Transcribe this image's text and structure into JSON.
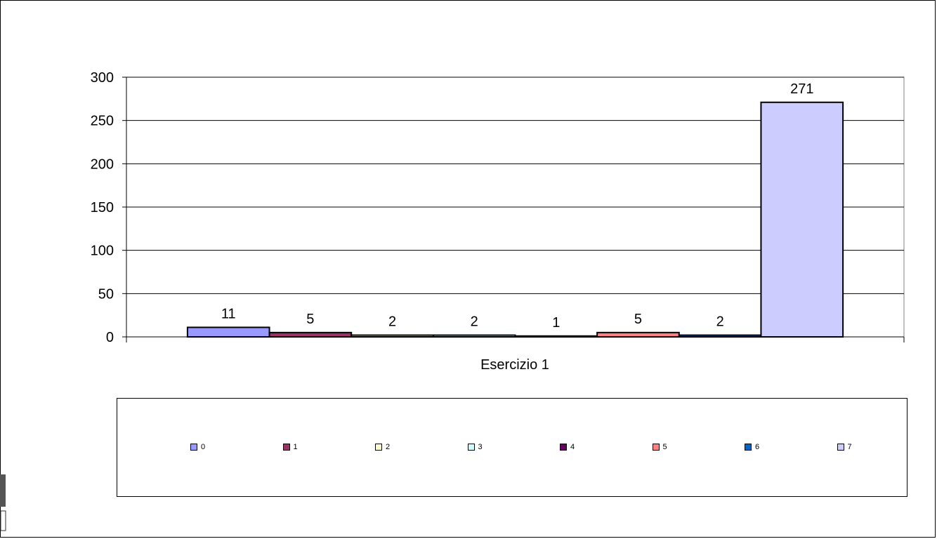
{
  "chart_data": {
    "type": "bar",
    "title": "",
    "xlabel": "Esercizio 1",
    "ylabel": "",
    "categories": [
      "Esercizio 1"
    ],
    "series": [
      {
        "name": "0",
        "values": [
          11
        ],
        "color": "#9999ff"
      },
      {
        "name": "1",
        "values": [
          5
        ],
        "color": "#993366"
      },
      {
        "name": "2",
        "values": [
          2
        ],
        "color": "#ffffcc"
      },
      {
        "name": "3",
        "values": [
          2
        ],
        "color": "#ccffff"
      },
      {
        "name": "4",
        "values": [
          1
        ],
        "color": "#660066"
      },
      {
        "name": "5",
        "values": [
          5
        ],
        "color": "#ff8080"
      },
      {
        "name": "6",
        "values": [
          2
        ],
        "color": "#0066cc"
      },
      {
        "name": "7",
        "values": [
          271
        ],
        "color": "#ccccff"
      }
    ],
    "ylim": [
      0,
      300
    ],
    "yticks": [
      "0",
      "50",
      "100",
      "150",
      "200",
      "250",
      "300"
    ],
    "data_labels": [
      "11",
      "5",
      "2",
      "2",
      "1",
      "5",
      "2",
      "271"
    ],
    "grid": true,
    "legend_position": "bottom"
  }
}
